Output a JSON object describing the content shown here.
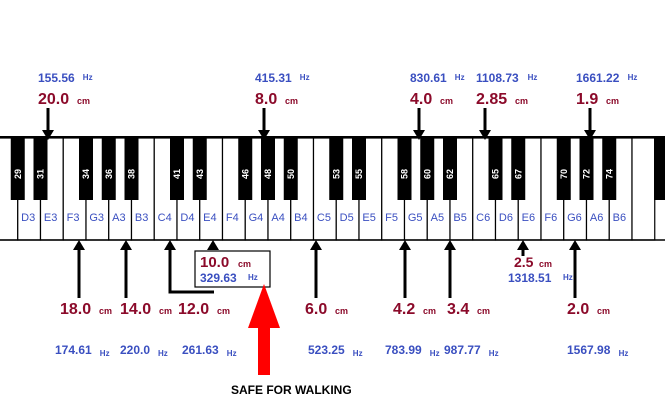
{
  "white_keys": [
    "",
    "D3",
    "E3",
    "F3",
    "G3",
    "A3",
    "B3",
    "C4",
    "D4",
    "E4",
    "F4",
    "G4",
    "A4",
    "B4",
    "C5",
    "D5",
    "E5",
    "F5",
    "G5",
    "A5",
    "B5",
    "C6",
    "D6",
    "E6",
    "F6",
    "G6",
    "A6",
    "B6",
    ""
  ],
  "black_keys": [
    "29",
    "31",
    "34",
    "36",
    "38",
    "41",
    "43",
    "46",
    "48",
    "50",
    "53",
    "55",
    "58",
    "60",
    "62",
    "65",
    "67",
    "70",
    "72",
    "74"
  ],
  "top_markers": [
    {
      "hz": "155.56",
      "cm": "20.0"
    },
    {
      "hz": "415.31",
      "cm": "8.0"
    },
    {
      "hz": "830.61",
      "cm": "4.0"
    },
    {
      "hz": "1108.73",
      "cm": "2.85"
    },
    {
      "hz": "1661.22",
      "cm": "1.9"
    }
  ],
  "bottom_markers": [
    {
      "cm": "18.0",
      "hz": "174.61"
    },
    {
      "cm": "14.0",
      "hz": "220.0"
    },
    {
      "cm": "12.0",
      "hz": "261.63"
    },
    {
      "cm": "6.0",
      "hz": "523.25"
    },
    {
      "cm": "4.2",
      "hz": "783.99"
    },
    {
      "cm": "3.4",
      "hz": "987.77"
    },
    {
      "cm": "2.0",
      "hz": "1567.98"
    }
  ],
  "e4_box": {
    "cm": "10.0",
    "hz": "329.63"
  },
  "e6_marker": {
    "cm": "2.5",
    "hz": "1318.51"
  },
  "units": {
    "hz": "Hz",
    "cm": "cm"
  },
  "safe_label": "SAFE FOR WALKING",
  "colors": {
    "hz": "#3a4fc0",
    "cm": "#8b0a2a",
    "arrow": "#ff0000",
    "key_border": "#000000"
  }
}
